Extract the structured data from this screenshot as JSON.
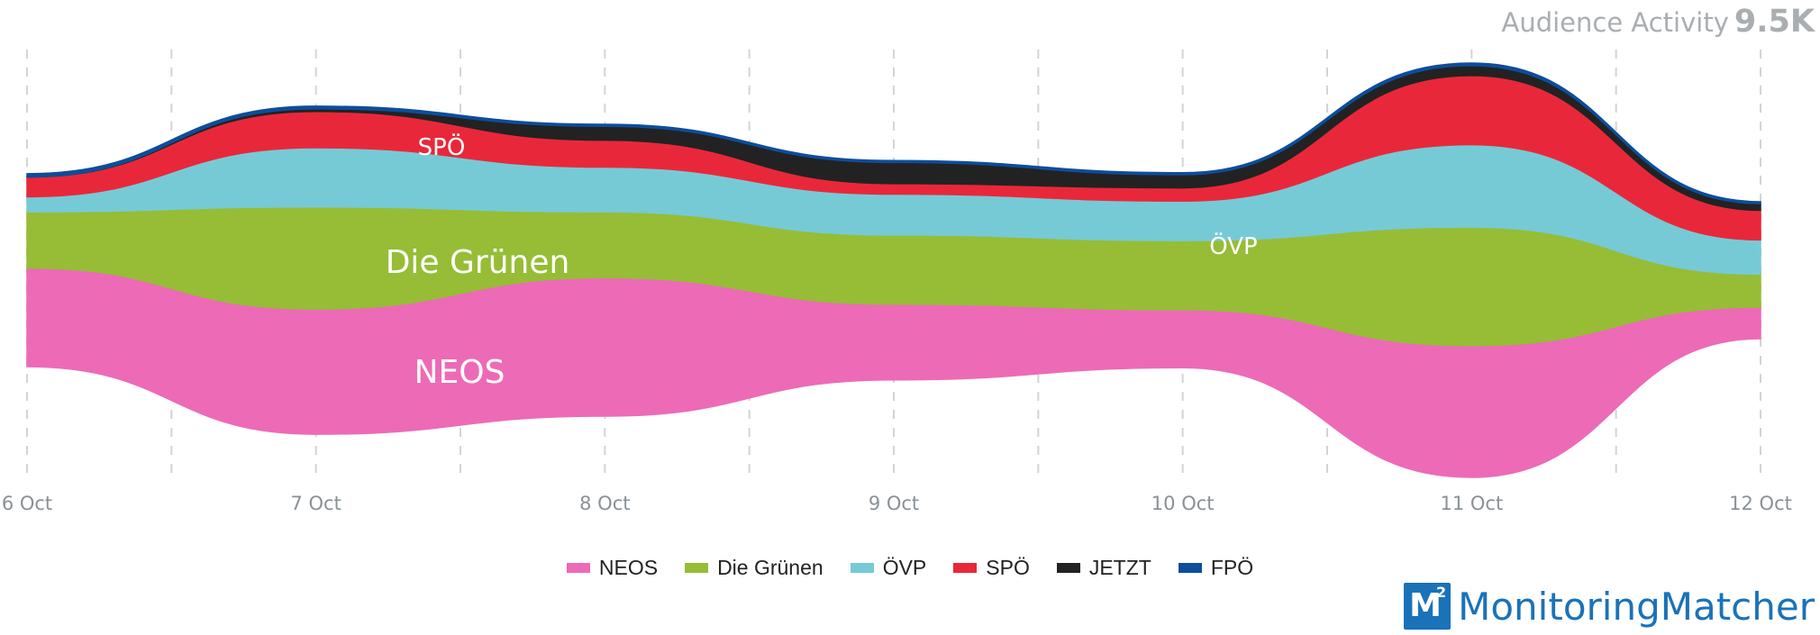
{
  "title": {
    "text": "Audience Activity",
    "value": "9.5K"
  },
  "brand": {
    "logo_letter": "M",
    "logo_sup": "2",
    "name": "MonitoringMatcher"
  },
  "chart_data": {
    "type": "area",
    "subtype": "streamgraph",
    "x": [
      "6 Oct",
      "7 Oct",
      "8 Oct",
      "9 Oct",
      "10 Oct",
      "11 Oct",
      "12 Oct"
    ],
    "grid": true,
    "legend_placement": "bottom-center",
    "series": [
      {
        "name": "NEOS",
        "color": "#ed6ab6",
        "values": [
          1500,
          1900,
          2100,
          1150,
          880,
          2000,
          480
        ]
      },
      {
        "name": "Die Grünen",
        "color": "#96bd35",
        "values": [
          850,
          1550,
          1000,
          1050,
          1050,
          1800,
          500
        ]
      },
      {
        "name": "ÖVP",
        "color": "#76cad6",
        "values": [
          230,
          900,
          680,
          620,
          600,
          1250,
          520
        ]
      },
      {
        "name": "SPÖ",
        "color": "#e8283a",
        "values": [
          300,
          550,
          410,
          160,
          200,
          1050,
          450
        ]
      },
      {
        "name": "JETZT",
        "color": "#222222",
        "values": [
          0,
          40,
          210,
          320,
          200,
          150,
          100
        ]
      },
      {
        "name": "FPÖ",
        "color": "#0d4d9c",
        "values": [
          50,
          40,
          30,
          30,
          30,
          40,
          30
        ]
      }
    ],
    "stream_labels": [
      "NEOS",
      "Die Grünen",
      "SPÖ",
      "ÖVP"
    ]
  }
}
